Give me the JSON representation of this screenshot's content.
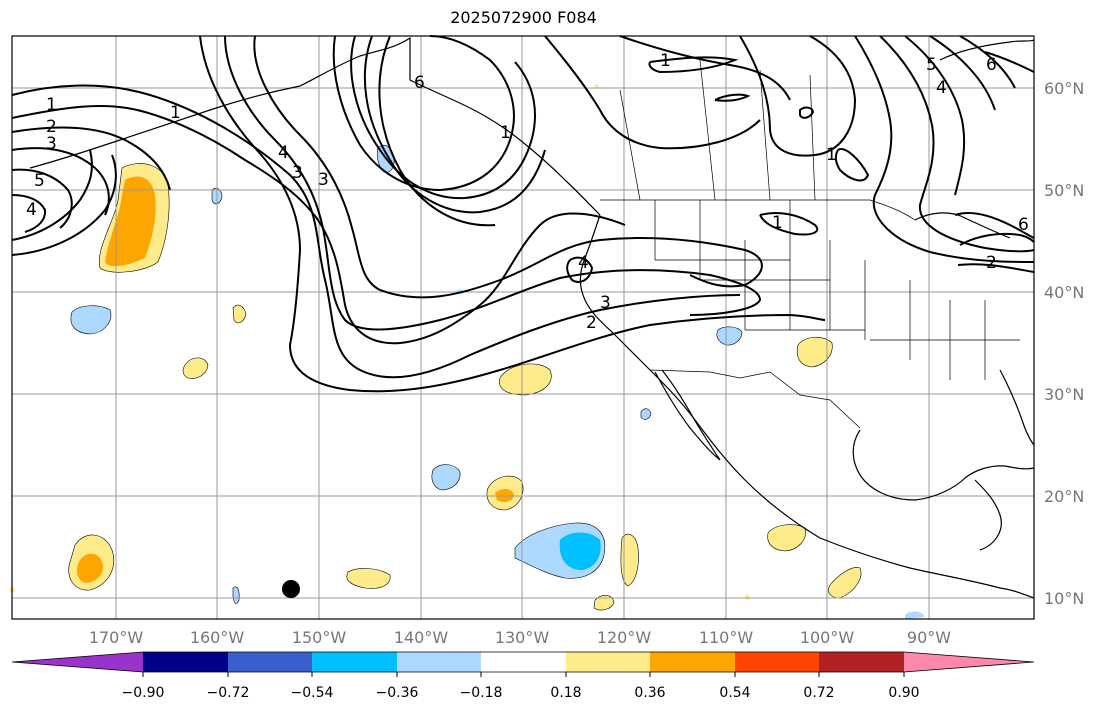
{
  "title": "2025072900 F084",
  "map": {
    "lon_ticks": [
      "170°W",
      "160°W",
      "150°W",
      "140°W",
      "130°W",
      "120°W",
      "110°W",
      "100°W",
      "90°W"
    ],
    "lat_ticks": [
      "60°N",
      "50°N",
      "40°N",
      "30°N",
      "20°N",
      "10°N"
    ],
    "contour_labels": [
      "1",
      "2",
      "3",
      "5",
      "4",
      "1",
      "4",
      "3",
      "3",
      "6",
      "1",
      "1",
      "1",
      "5",
      "6",
      "4",
      "6",
      "2",
      "3",
      "2",
      "4",
      "1"
    ],
    "marker": "filled-circle"
  },
  "colorbar": {
    "tick_labels": [
      "−0.90",
      "−0.72",
      "−0.54",
      "−0.36",
      "−0.18",
      "0.18",
      "0.36",
      "0.54",
      "0.72",
      "0.90"
    ],
    "colors": [
      "#9933cc",
      "#00008b",
      "#3a5fcd",
      "#00bfff",
      "#add8ff",
      "#ffffff",
      "#ffeb8a",
      "#ffa500",
      "#ff4500",
      "#b22222",
      "#ff88aa"
    ]
  }
}
